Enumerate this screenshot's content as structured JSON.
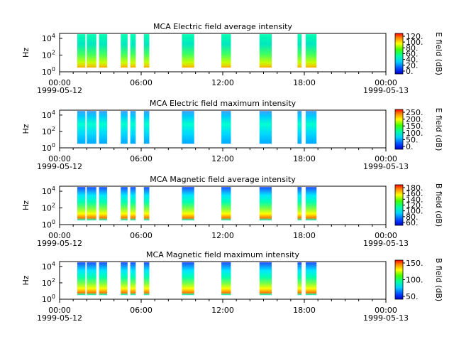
{
  "chart_data": [
    {
      "type": "heatmap",
      "title": "MCA  Electric field average intensity",
      "ylabel": "Hz",
      "y_scale": "log",
      "y_ticks": [
        {
          "base": "10",
          "exp": "0"
        },
        {
          "base": "10",
          "exp": "2"
        },
        {
          "base": "10",
          "exp": "4"
        }
      ],
      "x_ticks": [
        "00:00",
        "06:00",
        "12:00",
        "18:00",
        "00:00"
      ],
      "x_dates": [
        "1999-05-12",
        "1999-05-13"
      ],
      "colorbar_label": "E field (dB)",
      "colorbar_ticks": [
        "0.",
        "20.",
        "40.",
        "60.",
        "80.",
        "100.",
        "120."
      ],
      "palette": "average",
      "segments_hours": [
        [
          1.3,
          1.9
        ],
        [
          2.0,
          2.7
        ],
        [
          2.9,
          3.5
        ],
        [
          4.5,
          5.0
        ],
        [
          5.2,
          5.6
        ],
        [
          6.2,
          6.6
        ],
        [
          9.0,
          9.9
        ],
        [
          11.9,
          12.6
        ],
        [
          14.7,
          15.6
        ],
        [
          17.5,
          17.8
        ],
        [
          18.1,
          18.9
        ]
      ]
    },
    {
      "type": "heatmap",
      "title": "MCA  Electric field maximum intensity",
      "ylabel": "Hz",
      "y_scale": "log",
      "y_ticks": [
        {
          "base": "10",
          "exp": "0"
        },
        {
          "base": "10",
          "exp": "2"
        },
        {
          "base": "10",
          "exp": "4"
        }
      ],
      "x_ticks": [
        "00:00",
        "06:00",
        "12:00",
        "18:00",
        "00:00"
      ],
      "x_dates": [
        "1999-05-12",
        "1999-05-13"
      ],
      "colorbar_label": "E field (dB)",
      "colorbar_ticks": [
        "0.",
        "50.",
        "100.",
        "150.",
        "200.",
        "250."
      ],
      "palette": "maximum-e",
      "segments_hours": [
        [
          1.3,
          1.9
        ],
        [
          2.0,
          2.7
        ],
        [
          2.9,
          3.5
        ],
        [
          4.5,
          5.0
        ],
        [
          5.2,
          5.6
        ],
        [
          6.2,
          6.6
        ],
        [
          9.0,
          9.9
        ],
        [
          11.9,
          12.6
        ],
        [
          14.7,
          15.6
        ],
        [
          17.5,
          17.8
        ],
        [
          18.1,
          18.9
        ]
      ]
    },
    {
      "type": "heatmap",
      "title": "MCA  Magnetic field average intensity",
      "ylabel": "Hz",
      "y_scale": "log",
      "y_ticks": [
        {
          "base": "10",
          "exp": "0"
        },
        {
          "base": "10",
          "exp": "2"
        },
        {
          "base": "10",
          "exp": "4"
        }
      ],
      "x_ticks": [
        "00:00",
        "06:00",
        "12:00",
        "18:00",
        "00:00"
      ],
      "x_dates": [
        "1999-05-12",
        "1999-05-13"
      ],
      "colorbar_label": "B field (dB)",
      "colorbar_ticks": [
        "60.",
        "80.",
        "100.",
        "120.",
        "140.",
        "160.",
        "180."
      ],
      "palette": "magnetic",
      "segments_hours": [
        [
          1.3,
          1.9
        ],
        [
          2.0,
          2.7
        ],
        [
          2.9,
          3.5
        ],
        [
          4.5,
          5.0
        ],
        [
          5.2,
          5.6
        ],
        [
          6.2,
          6.6
        ],
        [
          9.0,
          9.9
        ],
        [
          11.9,
          12.6
        ],
        [
          14.7,
          15.6
        ],
        [
          17.5,
          17.8
        ],
        [
          18.1,
          18.9
        ]
      ]
    },
    {
      "type": "heatmap",
      "title": "MCA  Magnetic field maximum intensity",
      "ylabel": "Hz",
      "y_scale": "log",
      "y_ticks": [
        {
          "base": "10",
          "exp": "0"
        },
        {
          "base": "10",
          "exp": "2"
        },
        {
          "base": "10",
          "exp": "4"
        }
      ],
      "x_ticks": [
        "00:00",
        "06:00",
        "12:00",
        "18:00",
        "00:00"
      ],
      "x_dates": [
        "1999-05-12",
        "1999-05-13"
      ],
      "colorbar_label": "B field (dB)",
      "colorbar_ticks": [
        "50.",
        "100.",
        "150."
      ],
      "palette": "magnetic",
      "segments_hours": [
        [
          1.3,
          1.9
        ],
        [
          2.0,
          2.7
        ],
        [
          2.9,
          3.5
        ],
        [
          4.5,
          5.0
        ],
        [
          5.2,
          5.6
        ],
        [
          6.2,
          6.6
        ],
        [
          9.0,
          9.9
        ],
        [
          11.9,
          12.6
        ],
        [
          14.7,
          15.6
        ],
        [
          17.5,
          17.8
        ],
        [
          18.1,
          18.9
        ]
      ]
    }
  ]
}
